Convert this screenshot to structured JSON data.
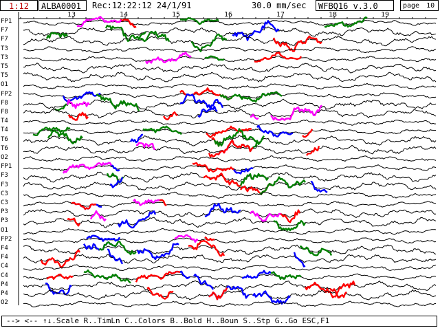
{
  "header": {
    "page_index": "1:12",
    "file_name": "ALBA0001",
    "record_time": "Rec:12:22:12 24/1/91",
    "speed": "30.0 mm/sec",
    "program": "WFBQ16 v.3.0",
    "page_label": "page",
    "page_number": "10"
  },
  "timeline": {
    "seconds": [
      "13",
      "14",
      "15",
      "16",
      "17",
      "18",
      "19"
    ]
  },
  "channels": [
    "FP1",
    "F7",
    "F7",
    "T3",
    "T3",
    "T5",
    "T5",
    "O1",
    "FP2",
    "F8",
    "F8",
    "T4",
    "T4",
    "T6",
    "T6",
    "O2",
    "FP1",
    "F3",
    "F3",
    "C3",
    "C3",
    "P3",
    "P3",
    "O1",
    "FP2",
    "F4",
    "F4",
    "C4",
    "C4",
    "P4",
    "P4",
    "O2"
  ],
  "colors": {
    "trace": "#000000",
    "red": "#ff0000",
    "magenta": "#ff00ff",
    "green": "#008000",
    "blue": "#0000ff",
    "purple": "#800080",
    "label_red": "#c00000"
  },
  "footer": {
    "hotkeys": "--> <-- ↑↓.Scale R..TimLn C..Colors B..Bold H..Boun S..Stp G..Go ESC,F1"
  }
}
